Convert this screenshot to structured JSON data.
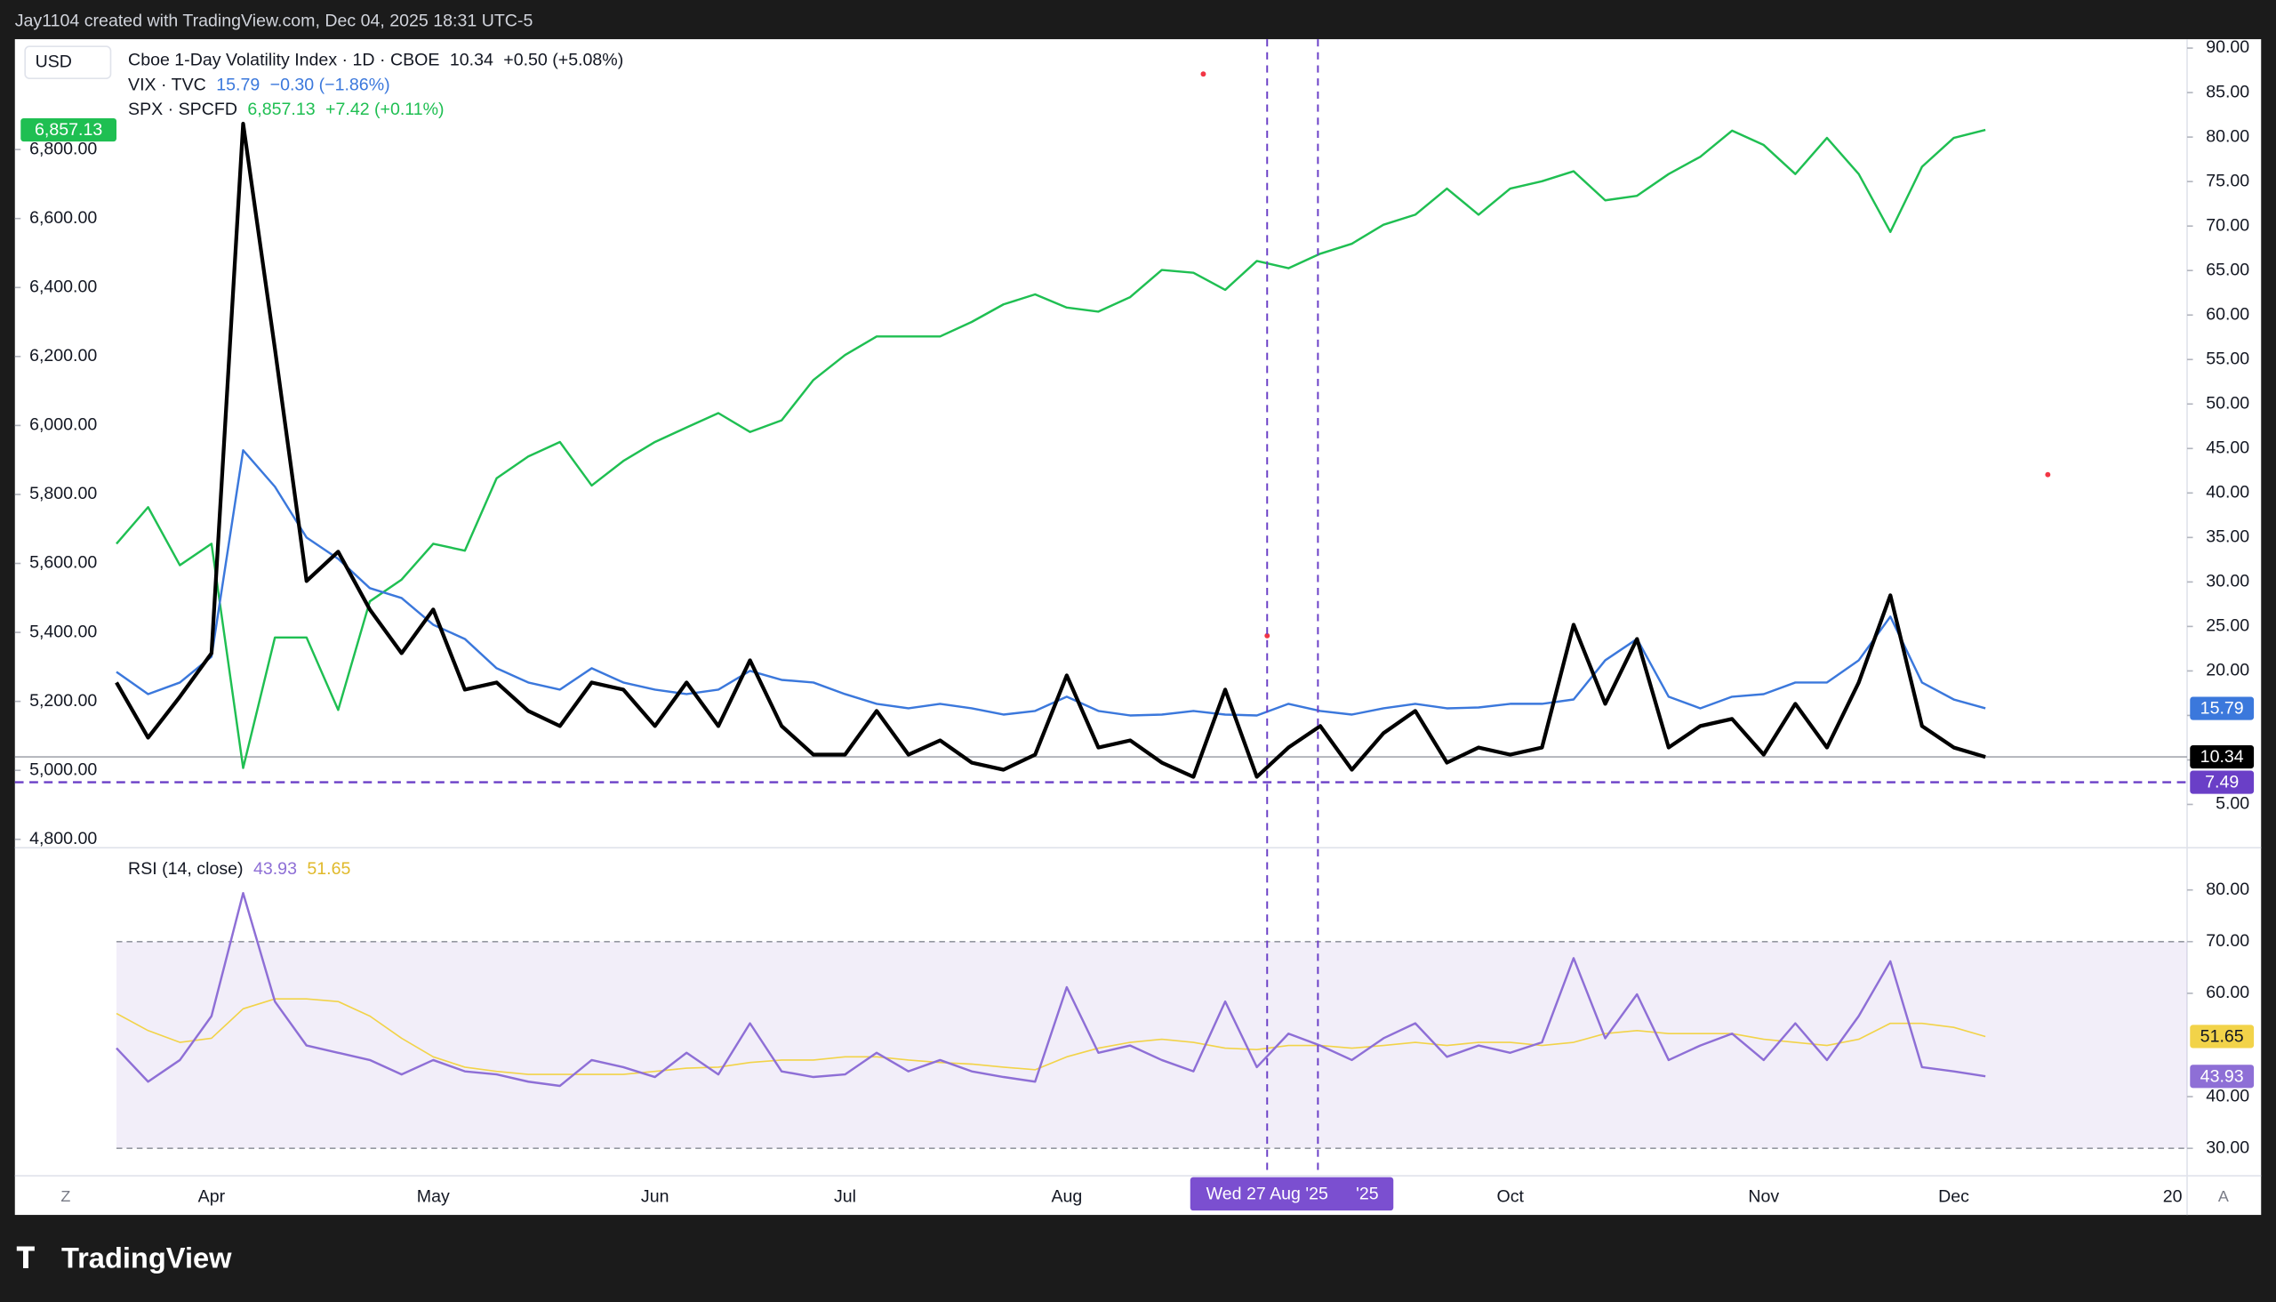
{
  "header": "Jay1104 created with TradingView.com, Dec 04, 2025 18:31 UTC-5",
  "footer": "TradingView",
  "currency": "USD",
  "buttons": {
    "left": "Z",
    "right": "A"
  },
  "chart_data": [
    {
      "type": "line",
      "categories": [
        null,
        null,
        null,
        "Apr",
        null,
        null,
        null,
        null,
        null,
        null,
        "May",
        null,
        null,
        null,
        null,
        null,
        null,
        "Jun",
        null,
        null,
        null,
        null,
        null,
        "Jul",
        null,
        null,
        null,
        null,
        null,
        null,
        "Aug",
        null,
        null,
        null,
        null,
        null,
        null,
        null,
        null,
        null,
        null,
        null,
        null,
        null,
        "Oct",
        null,
        null,
        null,
        null,
        null,
        null,
        null,
        "Nov",
        null,
        null,
        null,
        null,
        null,
        "Dec",
        null
      ],
      "x_edge_label": "20",
      "crosshair_label": "Wed 27 Aug '25",
      "crosshair_label_2": "'25",
      "ylim": [
        4780,
        7120
      ],
      "yticks": [
        {
          "value": 4800,
          "label": "4,800.00"
        },
        {
          "value": 5000,
          "label": "5,000.00"
        },
        {
          "value": 5200,
          "label": "5,200.00"
        },
        {
          "value": 5400,
          "label": "5,400.00"
        },
        {
          "value": 5600,
          "label": "5,600.00"
        },
        {
          "value": 5800,
          "label": "5,800.00"
        },
        {
          "value": 6000,
          "label": "6,000.00"
        },
        {
          "value": 6200,
          "label": "6,200.00"
        },
        {
          "value": 6400,
          "label": "6,400.00"
        },
        {
          "value": 6600,
          "label": "6,600.00"
        },
        {
          "value": 6800,
          "label": "6,800.00"
        }
      ],
      "y2lim": [
        0.3,
        91
      ],
      "y2ticks": [
        {
          "value": 5,
          "label": "5.00"
        },
        {
          "value": 10,
          "label": "10.00"
        },
        {
          "value": 15,
          "label": "15.00"
        },
        {
          "value": 20,
          "label": "20.00"
        },
        {
          "value": 25,
          "label": "25.00"
        },
        {
          "value": 30,
          "label": "30.00"
        },
        {
          "value": 35,
          "label": "35.00"
        },
        {
          "value": 40,
          "label": "40.00"
        },
        {
          "value": 45,
          "label": "45.00"
        },
        {
          "value": 50,
          "label": "50.00"
        },
        {
          "value": 55,
          "label": "55.00"
        },
        {
          "value": 60,
          "label": "60.00"
        },
        {
          "value": 65,
          "label": "65.00"
        },
        {
          "value": 70,
          "label": "70.00"
        },
        {
          "value": 75,
          "label": "75.00"
        },
        {
          "value": 80,
          "label": "80.00"
        },
        {
          "value": 85,
          "label": "85.00"
        },
        {
          "value": 90,
          "label": "90.00"
        }
      ],
      "hline": {
        "value": 7.49,
        "color": "#6a3fc7"
      },
      "series": [
        {
          "name": "Cboe 1-Day Volatility Index · 1D · CBOE",
          "color": "#000000",
          "axis": "y2",
          "last_label": "10.34",
          "change": "+0.50 (+5.08%)",
          "values": [
            18.7,
            12.5,
            17.1,
            22.0,
            81.5,
            56.2,
            30.1,
            33.4,
            26.9,
            22.0,
            26.9,
            17.9,
            18.7,
            15.5,
            13.8,
            18.7,
            17.9,
            13.8,
            18.7,
            13.8,
            21.2,
            13.8,
            10.6,
            10.6,
            15.5,
            10.6,
            12.2,
            9.7,
            8.9,
            10.6,
            19.5,
            11.4,
            12.2,
            9.7,
            8.1,
            17.9,
            8.1,
            11.4,
            13.8,
            8.9,
            13.0,
            15.5,
            9.7,
            11.4,
            10.6,
            11.4,
            25.2,
            16.3,
            23.6,
            11.4,
            13.8,
            14.6,
            10.6,
            16.3,
            11.4,
            18.7,
            28.5,
            13.8,
            11.4,
            10.34
          ]
        },
        {
          "name": "VIX · TVC",
          "color": "#3b78dc",
          "axis": "y2",
          "last_label": "15.79",
          "change": "−0.30 (−1.86%)",
          "values": [
            19.9,
            17.4,
            18.7,
            21.6,
            44.8,
            40.7,
            35.0,
            32.6,
            29.3,
            28.2,
            25.2,
            23.6,
            20.3,
            18.7,
            17.9,
            20.3,
            18.7,
            17.9,
            17.4,
            17.9,
            20.0,
            19.0,
            18.7,
            17.4,
            16.3,
            15.8,
            16.3,
            15.8,
            15.1,
            15.5,
            17.1,
            15.5,
            15.0,
            15.1,
            15.5,
            15.1,
            15.0,
            16.3,
            15.5,
            15.1,
            15.8,
            16.3,
            15.8,
            15.9,
            16.3,
            16.3,
            16.8,
            21.2,
            23.6,
            17.1,
            15.8,
            17.1,
            17.4,
            18.7,
            18.7,
            21.2,
            26.1,
            18.7,
            16.8,
            15.79
          ]
        },
        {
          "name": "SPX · SPCFD",
          "color": "#1fbf52",
          "last_label": "6,857.13",
          "change": "+7.42 (+0.11%)",
          "values": [
            5657,
            5763,
            5595,
            5657,
            5007,
            5385,
            5385,
            5175,
            5490,
            5553,
            5657,
            5637,
            5847,
            5910,
            5952,
            5826,
            5897,
            5952,
            5994,
            6036,
            5981,
            6015,
            6132,
            6204,
            6258,
            6258,
            6258,
            6300,
            6351,
            6380,
            6342,
            6330,
            6372,
            6451,
            6443,
            6393,
            6477,
            6456,
            6498,
            6527,
            6582,
            6611,
            6687,
            6611,
            6687,
            6708,
            6737,
            6653,
            6666,
            6729,
            6779,
            6855,
            6813,
            6729,
            6834,
            6729,
            6561,
            6750,
            6834,
            6857.13
          ]
        }
      ]
    },
    {
      "type": "line",
      "title": "RSI (14, close)",
      "ylim": [
        24.7,
        87.9
      ],
      "yticks": [
        {
          "value": 30,
          "label": "30.00"
        },
        {
          "value": 40,
          "label": "40.00"
        },
        {
          "value": 60,
          "label": "60.00"
        },
        {
          "value": 70,
          "label": "70.00"
        },
        {
          "value": 80,
          "label": "80.00"
        }
      ],
      "band": [
        30,
        70
      ],
      "band_color": "#7e57c2",
      "series": [
        {
          "color": "#8e6fd6",
          "last_label": "43.93",
          "values": [
            49.4,
            42.9,
            47.1,
            55.6,
            79.4,
            58.4,
            49.9,
            48.5,
            47.1,
            44.3,
            47.1,
            44.9,
            44.3,
            42.9,
            42.1,
            47.1,
            45.7,
            43.8,
            48.5,
            44.3,
            54.2,
            44.9,
            43.8,
            44.3,
            48.5,
            44.9,
            47.1,
            44.9,
            43.8,
            42.9,
            61.2,
            48.5,
            49.9,
            47.1,
            44.9,
            58.4,
            45.7,
            52.2,
            49.9,
            47.1,
            51.3,
            54.2,
            47.7,
            49.9,
            48.5,
            50.5,
            66.8,
            51.3,
            59.8,
            47.1,
            49.9,
            52.2,
            47.1,
            54.2,
            47.1,
            55.6,
            66.2,
            45.7,
            44.9,
            43.93
          ]
        },
        {
          "color": "#f2d349",
          "last_label": "51.65",
          "values": [
            56.1,
            52.8,
            50.5,
            51.3,
            57.0,
            58.9,
            58.9,
            58.4,
            55.6,
            51.3,
            47.7,
            45.7,
            44.9,
            44.3,
            44.3,
            44.3,
            44.3,
            44.9,
            45.5,
            45.7,
            46.6,
            47.1,
            47.1,
            47.7,
            47.7,
            47.1,
            46.6,
            46.3,
            45.7,
            45.2,
            47.7,
            49.4,
            50.5,
            51.1,
            50.5,
            49.4,
            49.1,
            49.9,
            49.9,
            49.4,
            49.9,
            50.5,
            49.9,
            50.5,
            50.5,
            49.9,
            50.5,
            52.2,
            52.8,
            52.2,
            52.2,
            52.2,
            51.1,
            50.5,
            49.9,
            51.1,
            54.2,
            54.2,
            53.4,
            51.65
          ]
        }
      ]
    }
  ]
}
